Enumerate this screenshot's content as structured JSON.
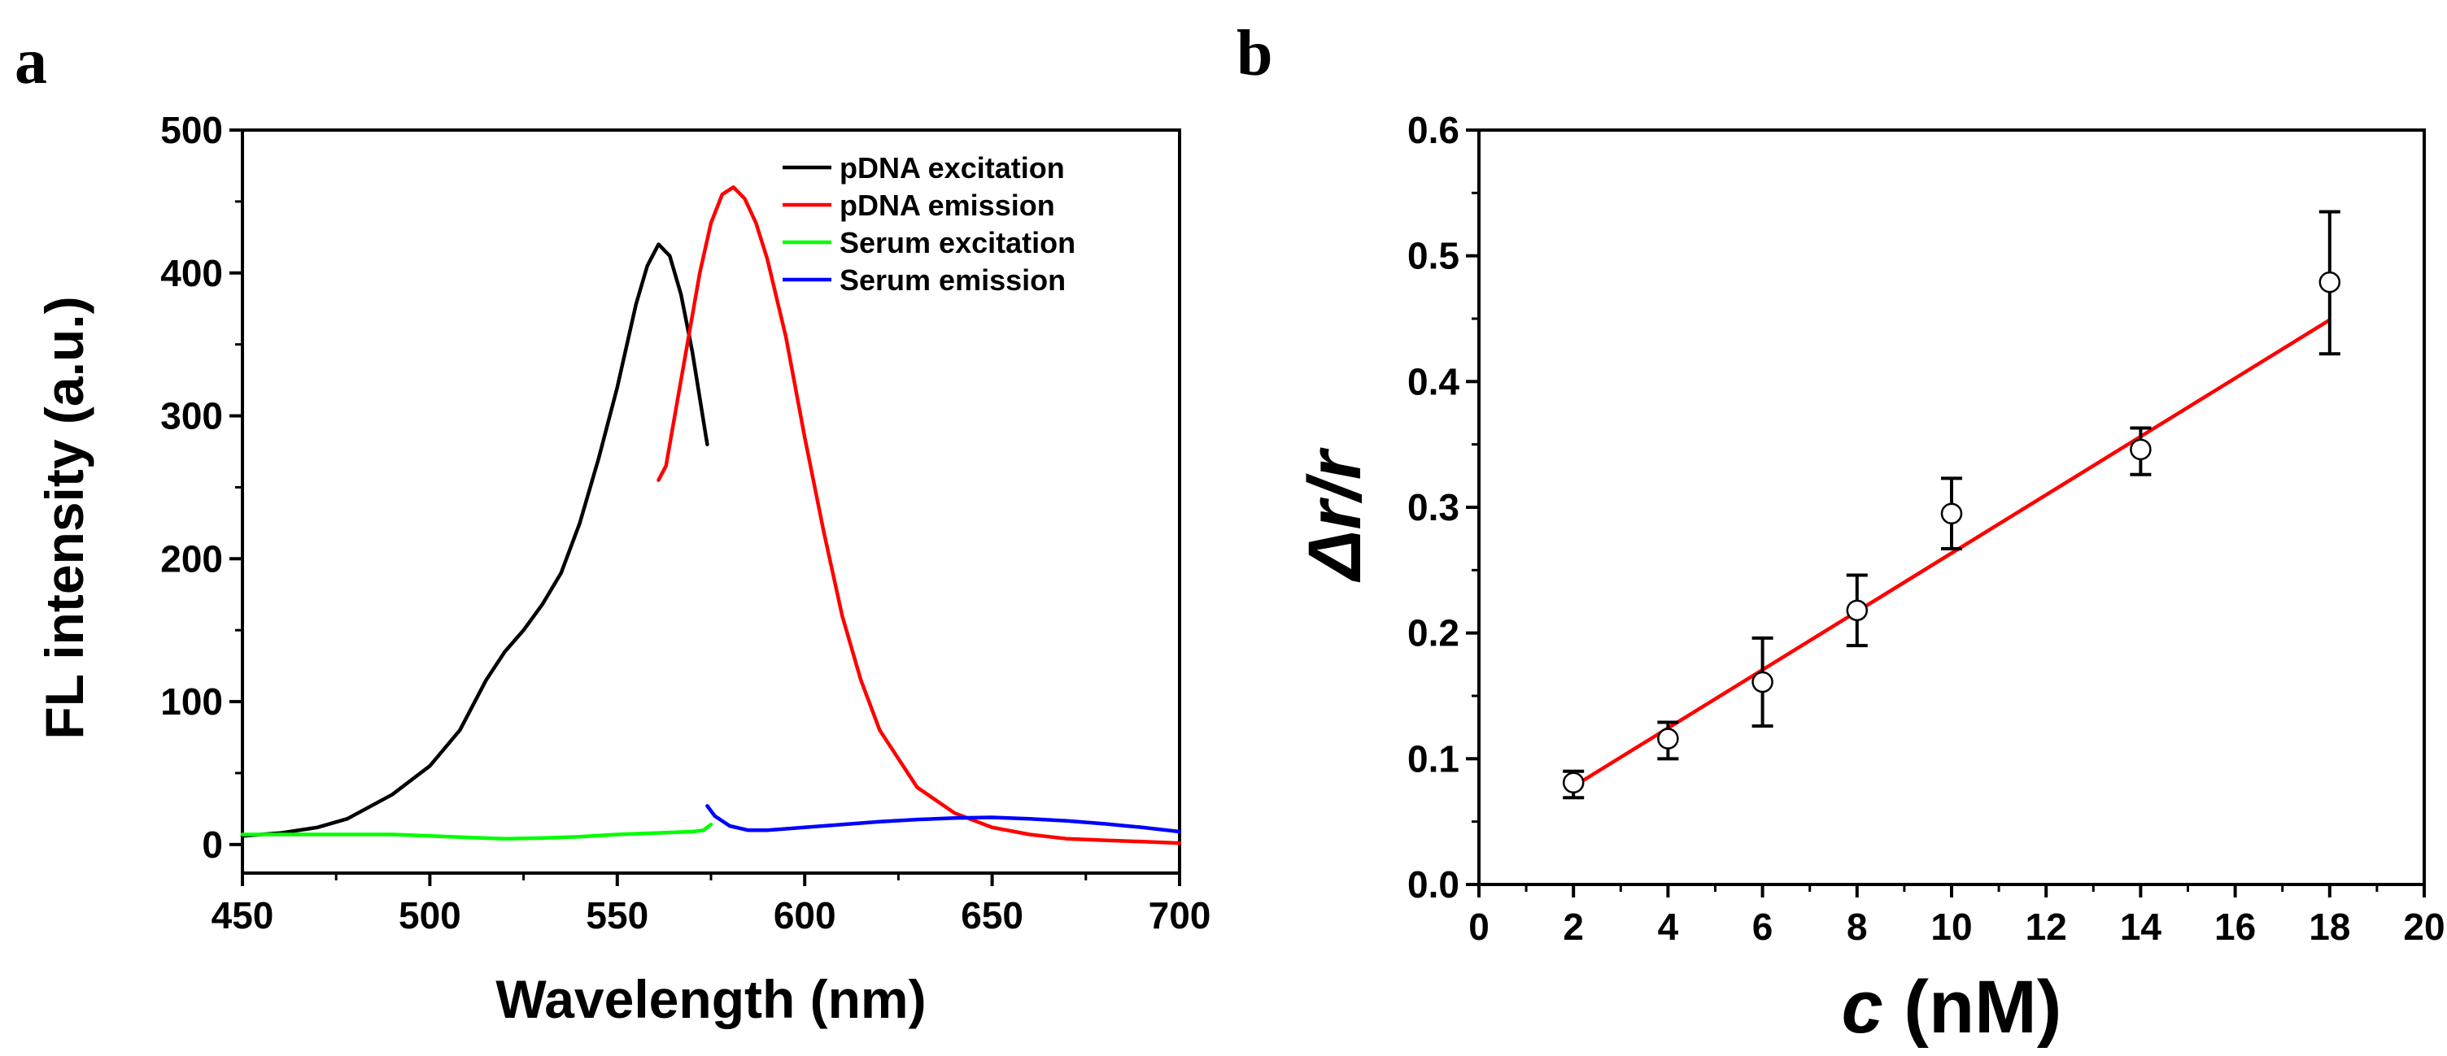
{
  "panels": {
    "a": {
      "letter": "a"
    },
    "b": {
      "letter": "b"
    }
  },
  "chart_data": [
    {
      "id": "a",
      "type": "line",
      "title": "",
      "xlabel": "Wavelength (nm)",
      "ylabel": "FL intensity (a.u.)",
      "xlim": [
        450,
        700
      ],
      "ylim": [
        -20,
        500
      ],
      "xticks": [
        450,
        500,
        550,
        600,
        650,
        700
      ],
      "yticks": [
        0,
        100,
        200,
        300,
        400,
        500
      ],
      "xtick_labels": [
        "450",
        "500",
        "550",
        "600",
        "650",
        "700"
      ],
      "ytick_labels": [
        "0",
        "100",
        "200",
        "300",
        "400",
        "500"
      ],
      "legend_position": "top-right",
      "series": [
        {
          "name": "pDNA excitation",
          "color": "#000000",
          "x": [
            450,
            460,
            470,
            478,
            490,
            500,
            508,
            515,
            520,
            525,
            530,
            535,
            540,
            545,
            550,
            555,
            558,
            561,
            564,
            567,
            570,
            574
          ],
          "y": [
            6,
            8,
            12,
            18,
            35,
            55,
            80,
            115,
            135,
            150,
            168,
            190,
            225,
            270,
            320,
            378,
            405,
            420,
            412,
            385,
            345,
            280
          ]
        },
        {
          "name": "pDNA emission",
          "color": "#ff0000",
          "x": [
            561,
            563,
            566,
            569,
            572,
            575,
            578,
            581,
            584,
            587,
            590,
            595,
            600,
            605,
            610,
            615,
            620,
            630,
            640,
            650,
            660,
            670,
            680,
            690,
            700
          ],
          "y": [
            255,
            265,
            310,
            355,
            400,
            435,
            455,
            460,
            452,
            435,
            410,
            355,
            285,
            220,
            160,
            115,
            80,
            40,
            22,
            12,
            7,
            4,
            3,
            2,
            1
          ]
        },
        {
          "name": "Serum excitation",
          "color": "#00ff00",
          "x": [
            450,
            460,
            470,
            480,
            490,
            500,
            510,
            520,
            530,
            540,
            550,
            560,
            570,
            573,
            575
          ],
          "y": [
            7,
            7,
            7,
            7,
            7,
            6,
            5,
            4,
            4.5,
            5.5,
            7,
            8,
            9,
            10,
            14
          ]
        },
        {
          "name": "Serum emission",
          "color": "#0000ff",
          "x": [
            574,
            576,
            580,
            585,
            590,
            600,
            610,
            620,
            630,
            640,
            650,
            660,
            670,
            680,
            690,
            700
          ],
          "y": [
            27,
            20,
            13,
            10,
            10,
            12,
            14,
            16,
            17.5,
            18.5,
            19,
            18,
            16.5,
            14.5,
            12,
            9
          ]
        }
      ]
    },
    {
      "id": "b",
      "type": "scatter",
      "title": "",
      "xlabel_italic": "c",
      "xlabel_rest": " (nM)",
      "ylabel_parts": [
        "Δ",
        "r",
        "/",
        "r"
      ],
      "xlim": [
        0,
        20
      ],
      "ylim": [
        0,
        0.6
      ],
      "xticks": [
        0,
        2,
        4,
        6,
        8,
        10,
        12,
        14,
        16,
        18,
        20
      ],
      "yticks": [
        0.0,
        0.1,
        0.2,
        0.3,
        0.4,
        0.5,
        0.6
      ],
      "xtick_labels": [
        "0",
        "2",
        "4",
        "6",
        "8",
        "10",
        "12",
        "14",
        "16",
        "18",
        "20"
      ],
      "ytick_labels": [
        "0.0",
        "0.1",
        "0.2",
        "0.3",
        "0.4",
        "0.5",
        "0.6"
      ],
      "points": [
        {
          "x": 2,
          "y": 0.081,
          "err_low": 0.012,
          "err_high": 0.009
        },
        {
          "x": 4,
          "y": 0.116,
          "err_low": 0.016,
          "err_high": 0.013
        },
        {
          "x": 6,
          "y": 0.161,
          "err_low": 0.035,
          "err_high": 0.035
        },
        {
          "x": 8,
          "y": 0.218,
          "err_low": 0.028,
          "err_high": 0.028
        },
        {
          "x": 10,
          "y": 0.295,
          "err_low": 0.028,
          "err_high": 0.028
        },
        {
          "x": 14,
          "y": 0.346,
          "err_low": 0.02,
          "err_high": 0.017
        },
        {
          "x": 18,
          "y": 0.479,
          "err_low": 0.057,
          "err_high": 0.056
        }
      ],
      "marker_color": "#000000",
      "fit_line": {
        "x": [
          2,
          18
        ],
        "y": [
          0.078,
          0.449
        ],
        "color": "#ff0000"
      }
    }
  ]
}
